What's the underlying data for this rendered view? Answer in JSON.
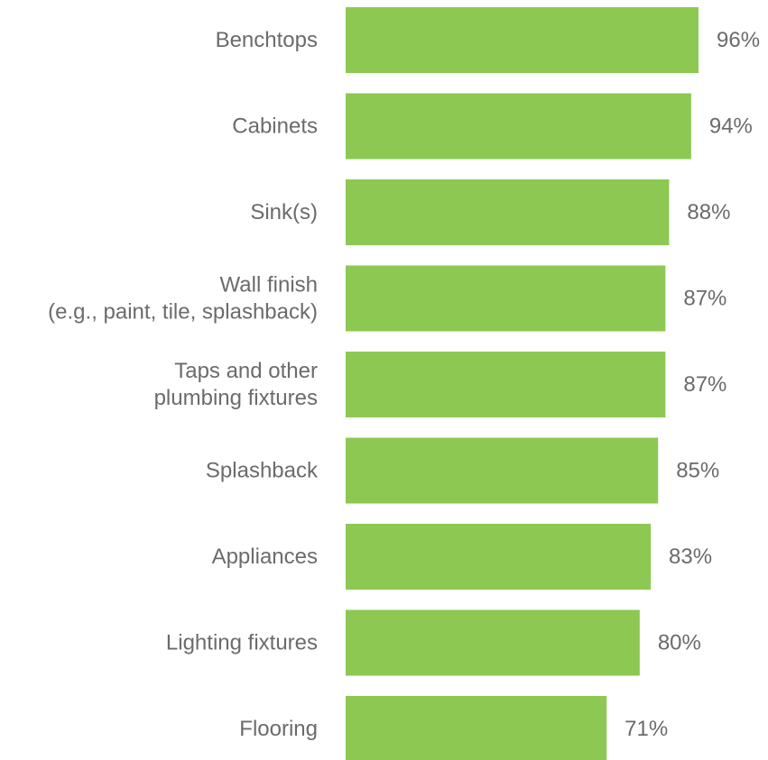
{
  "chart_data": {
    "type": "bar",
    "orientation": "horizontal",
    "categories": [
      [
        "Benchtops"
      ],
      [
        "Cabinets"
      ],
      [
        "Sink(s)"
      ],
      [
        "Wall finish",
        "(e.g., paint, tile, splashback)"
      ],
      [
        "Taps and other",
        "plumbing fixtures"
      ],
      [
        "Splashback"
      ],
      [
        "Appliances"
      ],
      [
        "Lighting fixtures"
      ],
      [
        "Flooring"
      ]
    ],
    "values": [
      96,
      94,
      88,
      87,
      87,
      85,
      83,
      80,
      71
    ],
    "value_labels": [
      "96%",
      "94%",
      "88%",
      "87%",
      "87%",
      "85%",
      "83%",
      "80%",
      "71%"
    ],
    "xlim": [
      0,
      100
    ],
    "grid": false,
    "legend": "none",
    "bar_color": "#8cc852",
    "text_color": "#6b6b6b"
  }
}
